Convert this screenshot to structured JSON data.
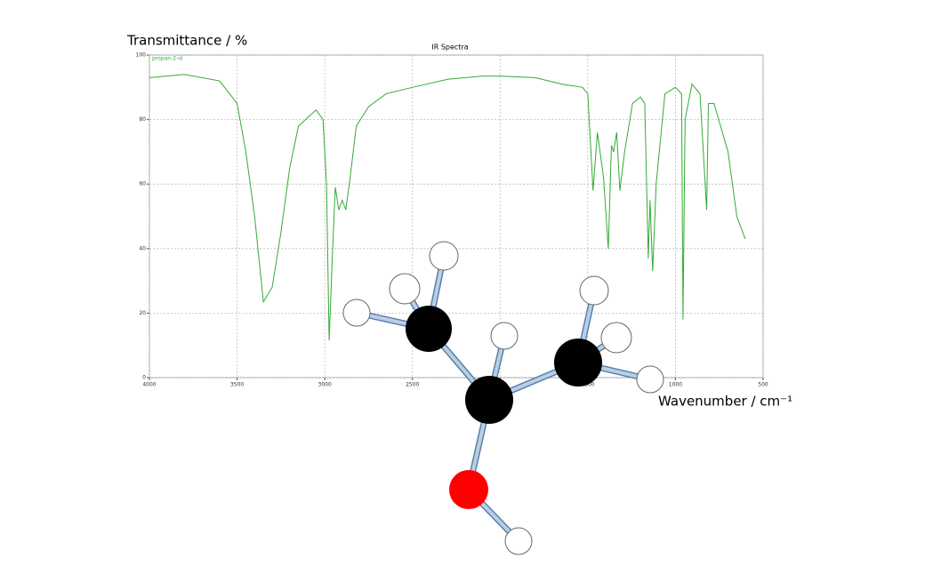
{
  "chart_data": {
    "type": "line",
    "title": "IR Spectra",
    "y_label": "Transmittance / %",
    "x_label": "Wavenumber / cm⁻¹",
    "x": [
      4000,
      3800,
      3600,
      3500,
      3450,
      3400,
      3350,
      3300,
      3250,
      3200,
      3150,
      3050,
      3010,
      2990,
      2975,
      2955,
      2940,
      2920,
      2900,
      2880,
      2860,
      2820,
      2750,
      2650,
      2500,
      2300,
      2100,
      2000,
      1800,
      1650,
      1530,
      1500,
      1470,
      1445,
      1410,
      1383,
      1365,
      1353,
      1335,
      1317,
      1290,
      1245,
      1200,
      1175,
      1155,
      1145,
      1130,
      1110,
      1060,
      1000,
      965,
      957,
      945,
      906,
      860,
      822,
      812,
      780,
      700,
      650,
      602
    ],
    "series": [
      {
        "name": "propan-2-ol",
        "color": "#33aa33",
        "values": [
          93,
          94,
          92,
          85,
          70,
          50,
          23.5,
          28,
          45,
          65,
          78,
          83,
          80,
          60,
          11.5,
          40,
          59,
          52,
          55,
          52,
          60,
          78,
          84,
          88,
          90,
          92.5,
          93.5,
          93.5,
          93,
          91,
          90,
          88,
          58,
          76,
          62,
          40,
          72,
          70,
          76,
          58,
          70,
          85,
          87,
          85,
          37,
          55,
          33,
          60,
          88,
          90,
          88,
          18,
          80,
          91,
          88,
          52,
          85,
          85,
          70,
          50,
          43
        ]
      }
    ],
    "xlim": [
      4000,
      500
    ],
    "ylim": [
      0,
      100
    ],
    "xticks": [
      4000,
      3500,
      3000,
      2500,
      2000,
      1500,
      1000,
      500
    ],
    "yticks": [
      0,
      20,
      40,
      60,
      80,
      100
    ],
    "grid": true
  }
}
